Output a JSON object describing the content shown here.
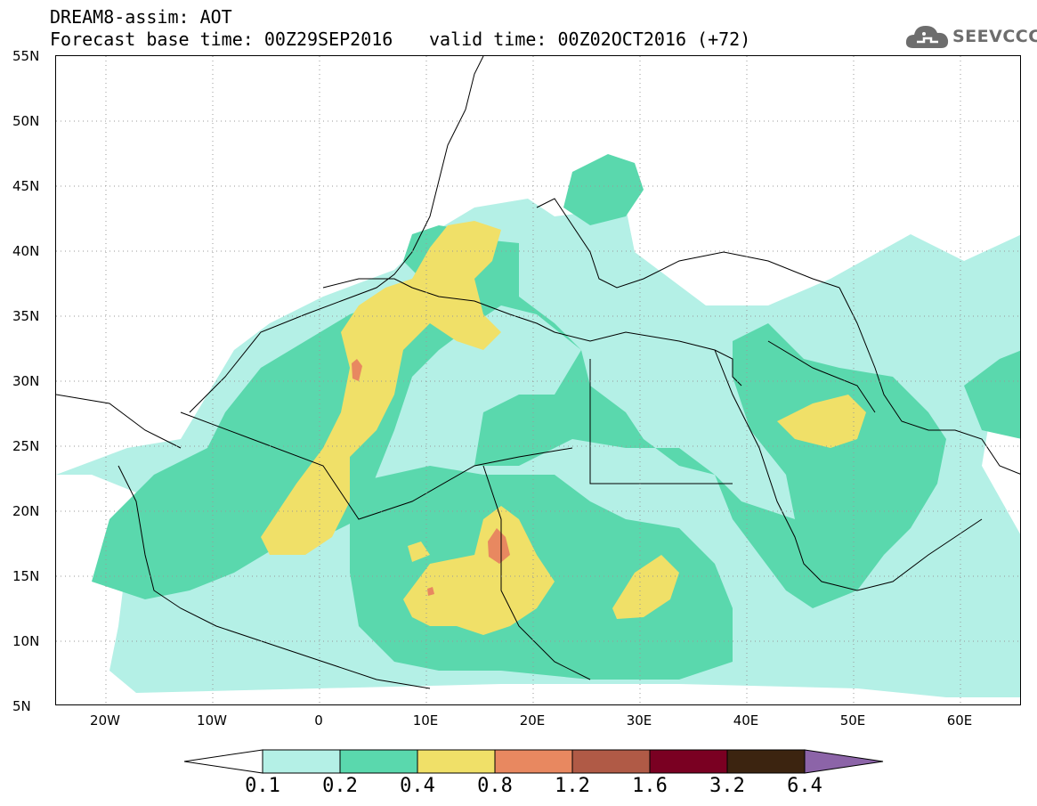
{
  "header": {
    "title": "DREAM8-assim: AOT",
    "base_time": "Forecast base time: 00Z29SEP2016",
    "valid_time": "valid time: 00Z02OCT2016 (+72)"
  },
  "logo": {
    "text": "SEEVCCC",
    "icon": "cloud-icon"
  },
  "map": {
    "lat_labels": [
      "55N",
      "50N",
      "45N",
      "40N",
      "35N",
      "30N",
      "25N",
      "20N",
      "15N",
      "10N",
      "5N"
    ],
    "lon_labels": [
      "20W",
      "10W",
      "0",
      "10E",
      "20E",
      "30E",
      "40E",
      "50E",
      "60E"
    ],
    "extent": {
      "lon_min": -25,
      "lon_max": 65,
      "lat_min": 5,
      "lat_max": 55
    }
  },
  "colorbar": {
    "labels": [
      "0.1",
      "0.2",
      "0.4",
      "0.8",
      "1.2",
      "1.6",
      "3.2",
      "6.4"
    ],
    "colors": [
      "#b4f0e6",
      "#5ad8ad",
      "#f0e068",
      "#e88860",
      "#b05a46",
      "#7a0022",
      "#3c2410",
      "#8c64a8"
    ]
  }
}
